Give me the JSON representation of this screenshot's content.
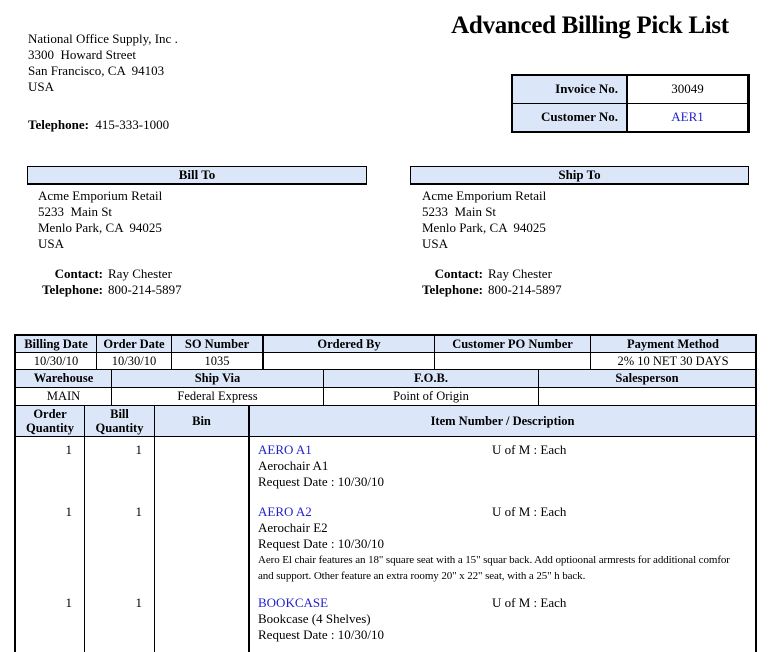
{
  "colors": {
    "header_fill": "#dbe6f8",
    "link_blue": "#2222cc",
    "border": "#000000"
  },
  "title": "Advanced Billing Pick List",
  "company": {
    "name": "National Office Supply, Inc .",
    "street": "3300  Howard Street",
    "city": "San Francisco, CA  94103",
    "country": "USA",
    "phone_label": "Telephone:",
    "phone": "415-333-1000"
  },
  "invoice_box": {
    "invoice_label": "Invoice No.",
    "invoice_value": "30049",
    "customer_label": "Customer No.",
    "customer_value": "AER1"
  },
  "bill_to": {
    "header": "Bill To",
    "name": "Acme Emporium Retail",
    "street": "5233  Main St",
    "city": "Menlo Park, CA  94025",
    "country": "USA",
    "contact_label": "Contact:",
    "contact": "Ray Chester",
    "phone_label": "Telephone:",
    "phone": "800-214-5897"
  },
  "ship_to": {
    "header": "Ship To",
    "name": "Acme Emporium Retail",
    "street": "5233  Main St",
    "city": "Menlo Park, CA  94025",
    "country": "USA",
    "contact_label": "Contact:",
    "contact": "Ray Chester",
    "phone_label": "Telephone:",
    "phone": "800-214-5897"
  },
  "order_info": {
    "row1_labels": [
      "Billing Date",
      "Order Date",
      "SO Number",
      "Ordered By",
      "Customer PO Number",
      "Payment Method"
    ],
    "row1_values": [
      "10/30/10",
      "10/30/10",
      "1035",
      "",
      "",
      "2% 10 NET 30 DAYS"
    ],
    "row2_labels": [
      "Warehouse",
      "Ship Via",
      "F.O.B.",
      "Salesperson"
    ],
    "row2_values": [
      "MAIN",
      "Federal Express",
      "Point of Origin",
      ""
    ],
    "row3_labels": [
      "Order\nQuantity",
      "Bill\nQuantity",
      "Bin",
      "Item Number / Description"
    ]
  },
  "items": [
    {
      "order_qty": "1",
      "bill_qty": "1",
      "bin": "",
      "code": "AERO A1",
      "uofm": "U of M : Each",
      "description": "Aerochair A1",
      "request_date": "Request Date : 10/30/10",
      "extended": ""
    },
    {
      "order_qty": "1",
      "bill_qty": "1",
      "bin": "",
      "code": "AERO A2",
      "uofm": "U of M : Each",
      "description": "Aerochair E2",
      "request_date": "Request Date : 10/30/10",
      "extended": "Aero El chair features an 18\" square seat with a 15\" squar back.  Add optioonal armrests for additional comfor and support.  Other feature an extra roomy 20\" x 22\" seat, with a 25\" h back."
    },
    {
      "order_qty": "1",
      "bill_qty": "1",
      "bin": "",
      "code": "BOOKCASE",
      "uofm": "U of M : Each",
      "description": "Bookcase (4 Shelves)",
      "request_date": "Request Date : 10/30/10",
      "extended": ""
    }
  ]
}
